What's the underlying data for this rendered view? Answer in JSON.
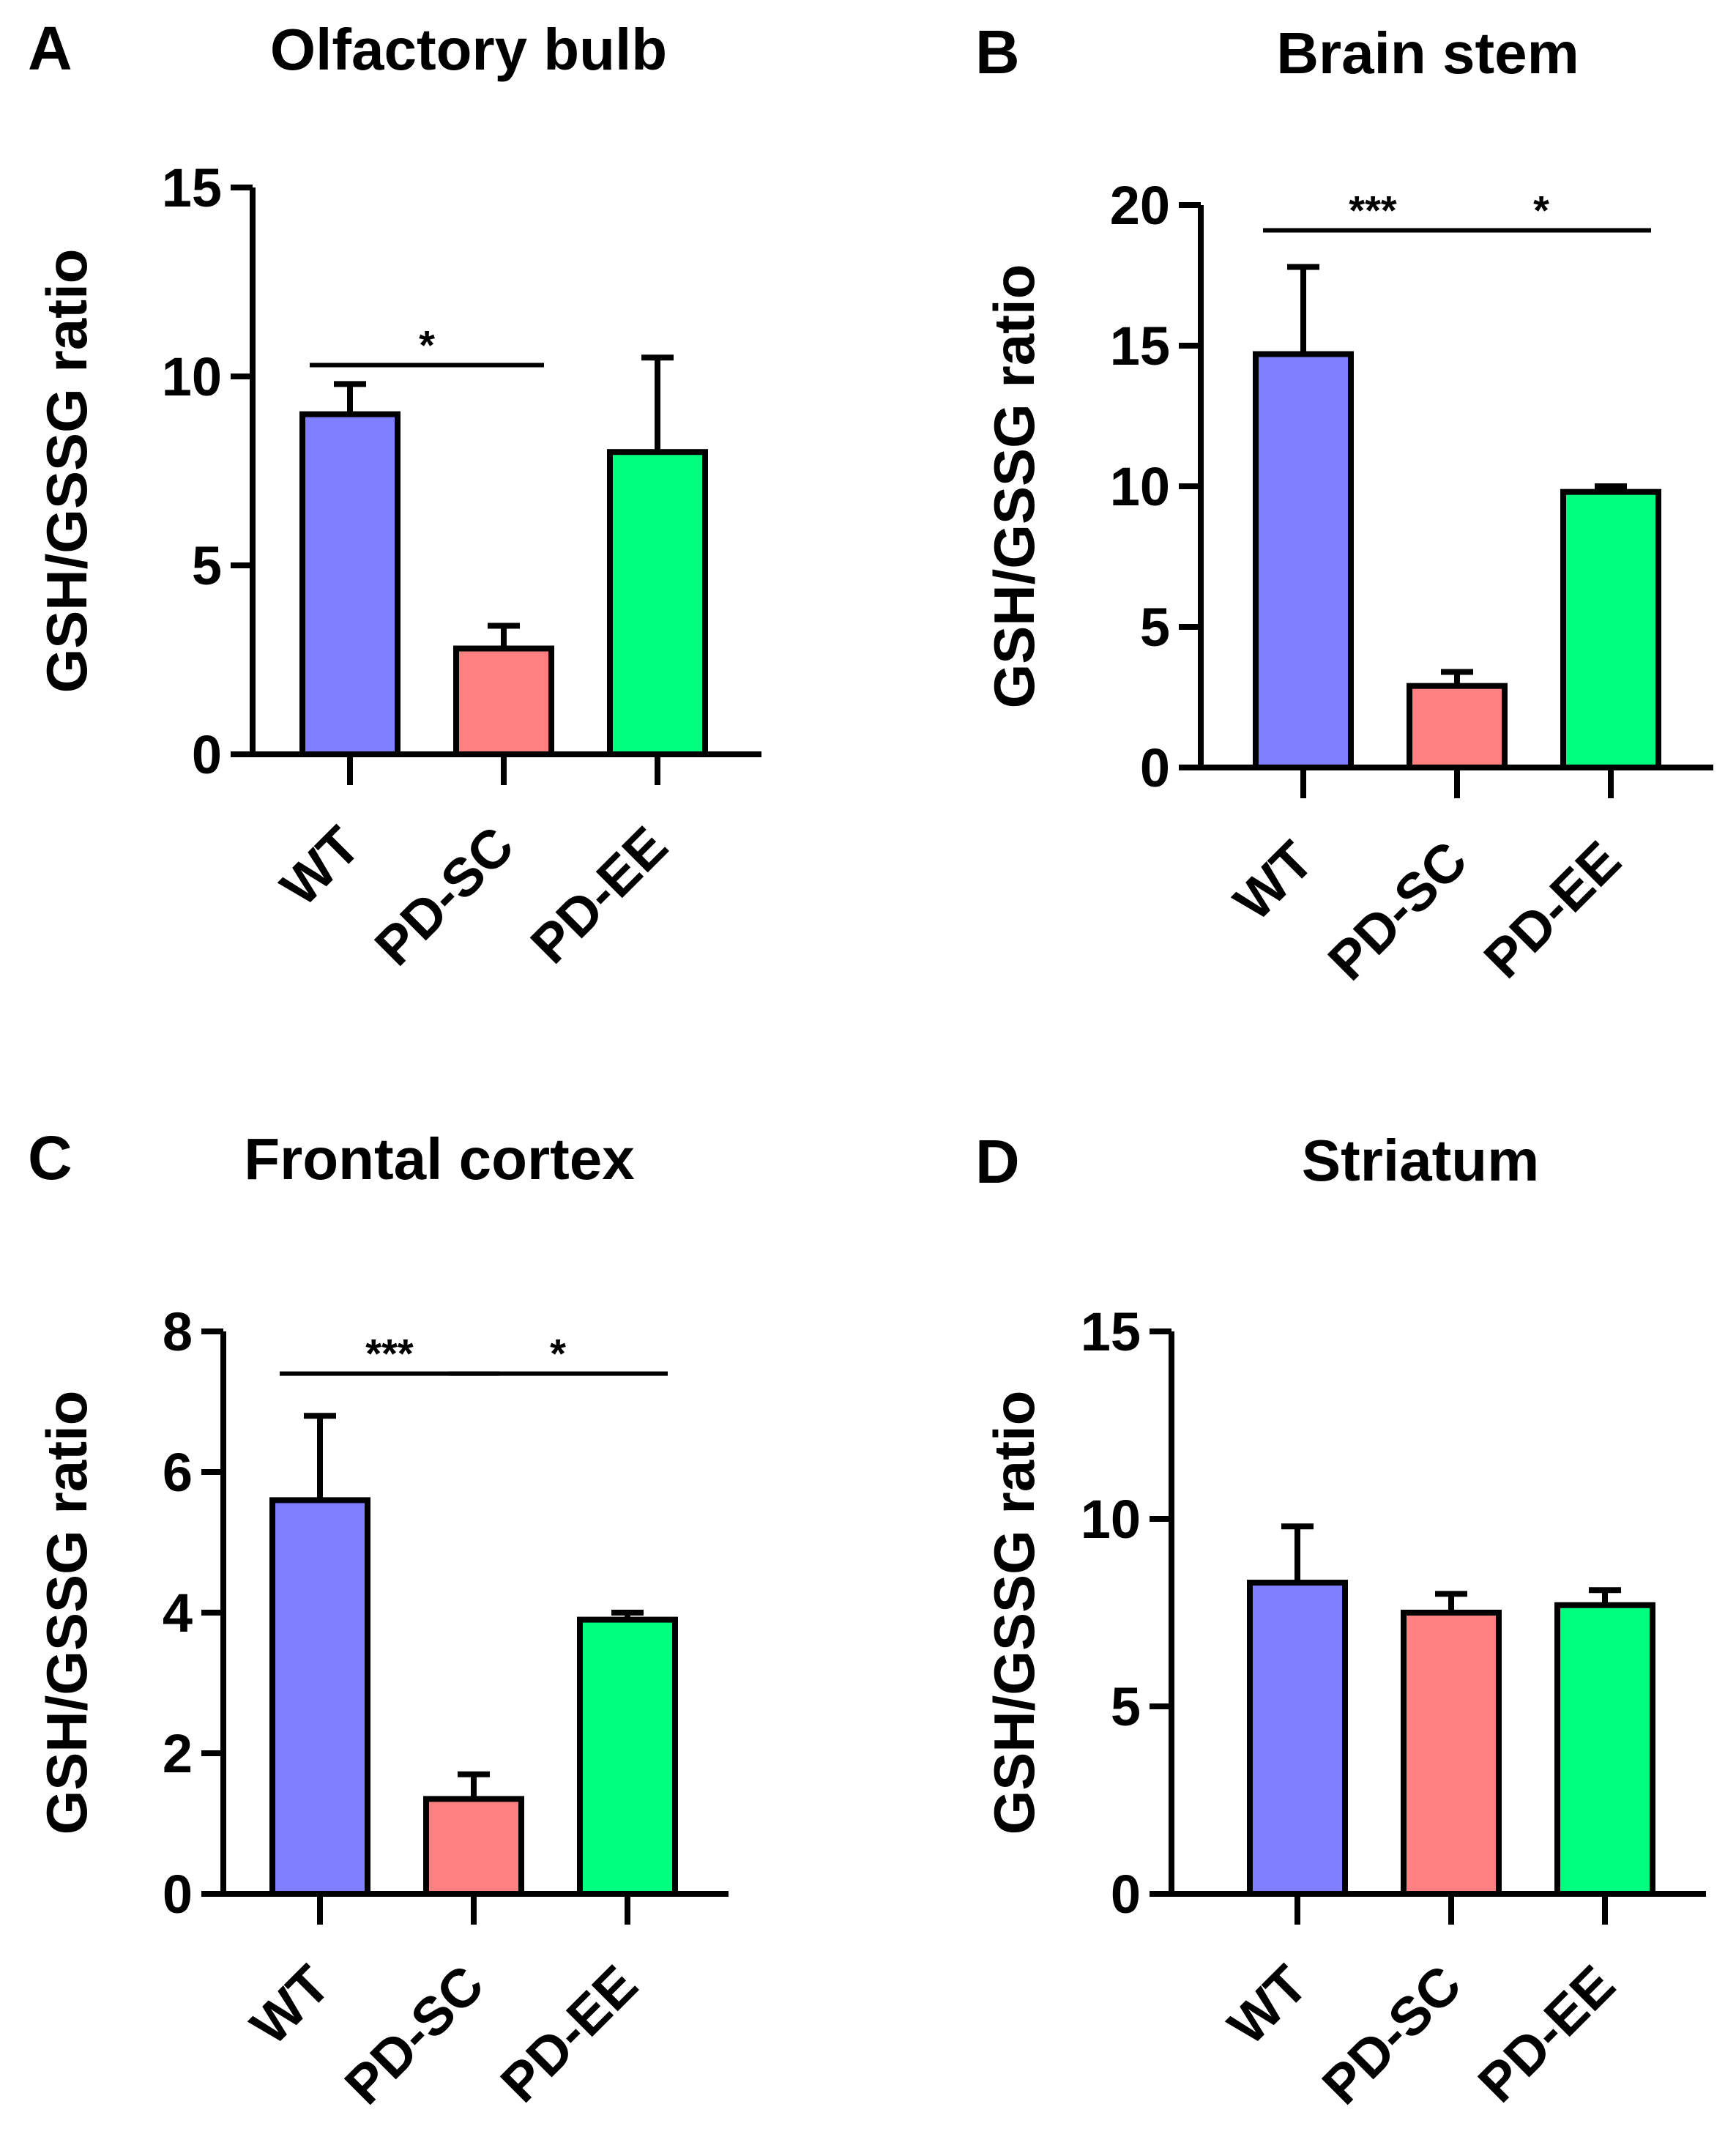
{
  "colors": {
    "WT": "#7f7fff",
    "PD-SC": "#ff8080",
    "PD-EE": "#00ff7f",
    "axis": "#000000"
  },
  "chart_data": [
    {
      "panel": "A",
      "type": "bar",
      "title": "Olfactory bulb",
      "ylabel": "GSH/GSSG ratio",
      "xlabel": "",
      "categories": [
        "WT",
        "PD-SC",
        "PD-EE"
      ],
      "values": [
        9.0,
        2.8,
        8.0
      ],
      "errors": [
        0.8,
        0.6,
        2.5
      ],
      "ylim": [
        0,
        15
      ],
      "yticks": [
        0,
        5,
        10,
        15
      ],
      "grid": false,
      "significance": [
        {
          "from": 0,
          "to": 1,
          "label": "*",
          "y": 10.3
        }
      ]
    },
    {
      "panel": "B",
      "type": "bar",
      "title": "Brain stem",
      "ylabel": "GSH/GSSG ratio",
      "xlabel": "",
      "categories": [
        "WT",
        "PD-SC",
        "PD-EE"
      ],
      "values": [
        14.7,
        2.9,
        9.8
      ],
      "errors": [
        3.1,
        0.5,
        0.2
      ],
      "ylim": [
        0,
        20
      ],
      "yticks": [
        0,
        5,
        10,
        15,
        20
      ],
      "grid": false,
      "significance": [
        {
          "from": 0,
          "to": 1,
          "label": "***",
          "y": 19.1
        },
        {
          "from": 1,
          "to": 2,
          "label": "*",
          "y": 19.1
        }
      ]
    },
    {
      "panel": "C",
      "type": "bar",
      "title": "Frontal cortex",
      "ylabel": "GSH/GSSG ratio",
      "xlabel": "",
      "categories": [
        "WT",
        "PD-SC",
        "PD-EE"
      ],
      "values": [
        5.6,
        1.35,
        3.9
      ],
      "errors": [
        1.2,
        0.35,
        0.1
      ],
      "ylim": [
        0,
        8
      ],
      "yticks": [
        0,
        2,
        4,
        6,
        8
      ],
      "grid": false,
      "significance": [
        {
          "from": 0,
          "to": 1,
          "label": "***",
          "y": 7.4
        },
        {
          "from": 1,
          "to": 2,
          "label": "*",
          "y": 7.4
        }
      ]
    },
    {
      "panel": "D",
      "type": "bar",
      "title": "Striatum",
      "ylabel": "GSH/GSSG ratio",
      "xlabel": "",
      "categories": [
        "WT",
        "PD-SC",
        "PD-EE"
      ],
      "values": [
        8.3,
        7.5,
        7.7
      ],
      "errors": [
        1.5,
        0.5,
        0.4
      ],
      "ylim": [
        0,
        15
      ],
      "yticks": [
        0,
        5,
        10,
        15
      ],
      "grid": false,
      "significance": []
    }
  ]
}
